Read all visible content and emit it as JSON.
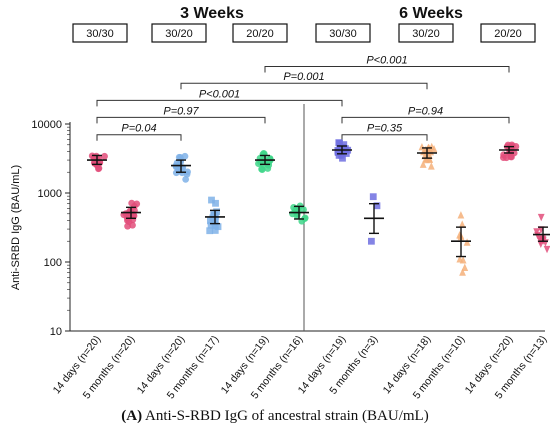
{
  "chart_data": {
    "type": "scatter",
    "ylabel": "Anti-SRBD IgG (BAU/mL)",
    "yscale": "log",
    "ylim": [
      10,
      10000
    ],
    "yticks": [
      "10",
      "100",
      "1000",
      "10000"
    ],
    "panels": [
      {
        "title": "3 Weeks",
        "boxes": [
          "30/30",
          "30/20",
          "20/20"
        ]
      },
      {
        "title": "6 Weeks",
        "boxes": [
          "30/30",
          "30/20",
          "20/20"
        ]
      }
    ],
    "groups": [
      {
        "label": "14 days (n=20)",
        "color": "#e24e7a",
        "marker": "circle",
        "median": 3000,
        "lo": 2600,
        "hi": 3500,
        "n": 20
      },
      {
        "label": "5 months (n=20)",
        "color": "#e24e7a",
        "marker": "circle",
        "median": 520,
        "lo": 430,
        "hi": 620,
        "n": 20
      },
      {
        "label": "14 days (n=20)",
        "color": "#7fb2e8",
        "marker": "circle",
        "median": 2500,
        "lo": 2000,
        "hi": 3000,
        "n": 20
      },
      {
        "label": "5 months (n=17)",
        "color": "#7fb2e8",
        "marker": "square",
        "median": 450,
        "lo": 360,
        "hi": 560,
        "n": 17
      },
      {
        "label": "14 days (n=19)",
        "color": "#3fd68a",
        "marker": "circle",
        "median": 3000,
        "lo": 2600,
        "hi": 3500,
        "n": 19
      },
      {
        "label": "5 months (n=16)",
        "color": "#3fd68a",
        "marker": "circle",
        "median": 520,
        "lo": 420,
        "hi": 640,
        "n": 16
      },
      {
        "label": "14 days (n=19)",
        "color": "#6f6fe0",
        "marker": "square",
        "median": 4200,
        "lo": 3700,
        "hi": 4800,
        "n": 19
      },
      {
        "label": "5 months (n=3)",
        "color": "#6f6fe0",
        "marker": "square",
        "median": 430,
        "lo": 260,
        "hi": 700,
        "n": 3
      },
      {
        "label": "14 days (n=18)",
        "color": "#f5b07a",
        "marker": "triangle",
        "median": 3800,
        "lo": 3200,
        "hi": 4500,
        "n": 18
      },
      {
        "label": "5 months (n=10)",
        "color": "#f5b07a",
        "marker": "triangle",
        "median": 200,
        "lo": 120,
        "hi": 320,
        "n": 10
      },
      {
        "label": "14 days (n=20)",
        "color": "#e24e7a",
        "marker": "circle",
        "median": 4200,
        "lo": 3800,
        "hi": 4700,
        "n": 20
      },
      {
        "label": "5 months (n=13)",
        "color": "#e24e7a",
        "marker": "triangle-down",
        "median": 250,
        "lo": 200,
        "hi": 320,
        "n": 13
      }
    ],
    "comparisons": [
      {
        "label": "P=0.04",
        "from": 0,
        "to": 2,
        "y": 7000
      },
      {
        "label": "P=0.97",
        "from": 0,
        "to": 4,
        "y": 12500
      },
      {
        "label": "P<0.001",
        "from": 0,
        "to": 6,
        "y": 22000
      },
      {
        "label": "P=0.001",
        "from": 2,
        "to": 8,
        "y": 39000
      },
      {
        "label": "P<0.001",
        "from": 4,
        "to": 10,
        "y": 68000
      },
      {
        "label": "P=0.35",
        "from": 6,
        "to": 8,
        "y": 7000
      },
      {
        "label": "P=0.94",
        "from": 6,
        "to": 10,
        "y": 12500
      }
    ]
  },
  "caption": {
    "label": "(A)",
    "text": " Anti-S-RBD IgG of ancestral strain (BAU/mL)"
  }
}
